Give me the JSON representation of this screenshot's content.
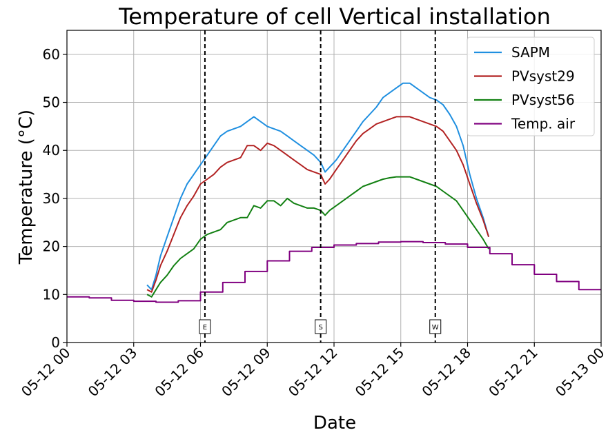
{
  "chart_data": {
    "type": "line",
    "title": "Temperature of cell Vertical installation",
    "xlabel": "Date",
    "ylabel": "Temperature (°C)",
    "xlim": [
      "2024-05-12 00:00",
      "2024-05-13 00:00"
    ],
    "ylim": [
      0,
      65
    ],
    "grid": true,
    "legend_position": "top-right",
    "x_ticks": [
      "05-12 00",
      "05-12 03",
      "05-12 06",
      "05-12 09",
      "05-12 12",
      "05-12 15",
      "05-12 18",
      "05-12 21",
      "05-13 00"
    ],
    "x_tick_hours": [
      0,
      3,
      6,
      9,
      12,
      15,
      18,
      21,
      24
    ],
    "y_ticks": [
      0,
      10,
      20,
      30,
      40,
      50,
      60
    ],
    "markers": [
      {
        "label": "E",
        "hour": 6.2
      },
      {
        "label": "S",
        "hour": 11.4
      },
      {
        "label": "W",
        "hour": 16.55
      }
    ],
    "series": [
      {
        "name": "SAPM",
        "color": "#1f8fe0",
        "x_hours": [
          3.6,
          3.8,
          4.0,
          4.2,
          4.5,
          4.8,
          5.1,
          5.4,
          5.7,
          6.0,
          6.3,
          6.6,
          6.9,
          7.2,
          7.5,
          7.8,
          8.1,
          8.4,
          8.7,
          9.0,
          9.3,
          9.6,
          9.9,
          10.2,
          10.5,
          10.8,
          11.1,
          11.4,
          11.6,
          11.8,
          12.1,
          12.4,
          12.7,
          13.0,
          13.3,
          13.6,
          13.9,
          14.2,
          14.5,
          14.8,
          15.1,
          15.4,
          15.7,
          16.0,
          16.3,
          16.6,
          16.9,
          17.2,
          17.5,
          17.8,
          18.1,
          18.4,
          18.7,
          18.95
        ],
        "values": [
          12,
          11,
          14,
          18,
          22,
          26,
          30,
          33,
          35,
          37,
          39,
          41,
          43,
          44,
          44.5,
          45,
          46,
          47,
          46,
          45,
          44.5,
          44,
          43,
          42,
          41,
          40,
          39,
          37.5,
          35.5,
          36.5,
          38,
          40,
          42,
          44,
          46,
          47.5,
          49,
          51,
          52,
          53,
          54,
          54,
          53,
          52,
          51,
          50.5,
          49.5,
          47.5,
          45,
          41,
          35,
          30,
          26,
          22
        ]
      },
      {
        "name": "PVsyst29",
        "color": "#b22222",
        "x_hours": [
          3.6,
          3.8,
          4.0,
          4.2,
          4.5,
          4.8,
          5.1,
          5.4,
          5.7,
          6.0,
          6.3,
          6.6,
          6.9,
          7.2,
          7.5,
          7.8,
          8.1,
          8.4,
          8.7,
          9.0,
          9.3,
          9.6,
          9.9,
          10.2,
          10.5,
          10.8,
          11.1,
          11.4,
          11.6,
          11.8,
          12.1,
          12.4,
          12.7,
          13.0,
          13.3,
          13.6,
          13.9,
          14.2,
          14.5,
          14.8,
          15.1,
          15.4,
          15.7,
          16.0,
          16.3,
          16.6,
          16.9,
          17.2,
          17.5,
          17.8,
          18.1,
          18.4,
          18.7,
          18.95
        ],
        "values": [
          11,
          10.5,
          13,
          16,
          19,
          22.5,
          26,
          28.5,
          30.5,
          33,
          34,
          35,
          36.5,
          37.5,
          38,
          38.5,
          41,
          41,
          40,
          41.5,
          41,
          40,
          39,
          38,
          37,
          36,
          35.5,
          35,
          33,
          34,
          36,
          38,
          40,
          42,
          43.5,
          44.5,
          45.5,
          46,
          46.5,
          47,
          47,
          47,
          46.5,
          46,
          45.5,
          45,
          44,
          42,
          40,
          37,
          33,
          29,
          25.5,
          22
        ]
      },
      {
        "name": "PVsyst56",
        "color": "#128012",
        "x_hours": [
          3.6,
          3.8,
          4.0,
          4.2,
          4.5,
          4.8,
          5.1,
          5.4,
          5.7,
          6.0,
          6.3,
          6.6,
          6.9,
          7.2,
          7.5,
          7.8,
          8.1,
          8.4,
          8.7,
          9.0,
          9.3,
          9.6,
          9.9,
          10.2,
          10.5,
          10.8,
          11.1,
          11.4,
          11.6,
          11.8,
          12.1,
          12.4,
          12.7,
          13.0,
          13.3,
          13.6,
          13.9,
          14.2,
          14.5,
          14.8,
          15.1,
          15.4,
          15.7,
          16.0,
          16.3,
          16.6,
          16.9,
          17.2,
          17.5,
          17.8,
          18.1,
          18.4,
          18.7,
          18.95
        ],
        "values": [
          10,
          9.5,
          11,
          12.5,
          14,
          16,
          17.5,
          18.5,
          19.5,
          21.5,
          22.5,
          23,
          23.5,
          25,
          25.5,
          26,
          26,
          28.5,
          28,
          29.5,
          29.5,
          28.5,
          30,
          29,
          28.5,
          28,
          28,
          27.5,
          26.5,
          27.5,
          28.5,
          29.5,
          30.5,
          31.5,
          32.5,
          33,
          33.5,
          34,
          34.3,
          34.5,
          34.5,
          34.5,
          34,
          33.5,
          33,
          32.5,
          31.5,
          30.5,
          29.5,
          27.5,
          25.5,
          23.5,
          21.5,
          19.5
        ]
      },
      {
        "name": "Temp. air",
        "color": "#800080",
        "x_hours": [
          0,
          1,
          1,
          2,
          2,
          3,
          3,
          4,
          4,
          5,
          5,
          6,
          6,
          7,
          7,
          8,
          8,
          9,
          9,
          10,
          10,
          11,
          11,
          12,
          12,
          13,
          13,
          14,
          14,
          15,
          15,
          16,
          16,
          17,
          17,
          18,
          18,
          19,
          19,
          20,
          20,
          21,
          21,
          22,
          22,
          23,
          23,
          24
        ],
        "values": [
          9.5,
          9.5,
          9.3,
          9.3,
          8.8,
          8.8,
          8.6,
          8.6,
          8.4,
          8.4,
          8.7,
          8.7,
          10.5,
          10.5,
          12.5,
          12.5,
          14.8,
          14.8,
          17.0,
          17.0,
          19.0,
          19.0,
          19.8,
          19.8,
          20.3,
          20.3,
          20.6,
          20.6,
          20.9,
          20.9,
          21.0,
          21.0,
          20.8,
          20.8,
          20.5,
          20.5,
          19.8,
          19.8,
          18.5,
          18.5,
          16.2,
          16.2,
          14.2,
          14.2,
          12.7,
          12.7,
          11.0,
          11.0
        ]
      }
    ]
  }
}
